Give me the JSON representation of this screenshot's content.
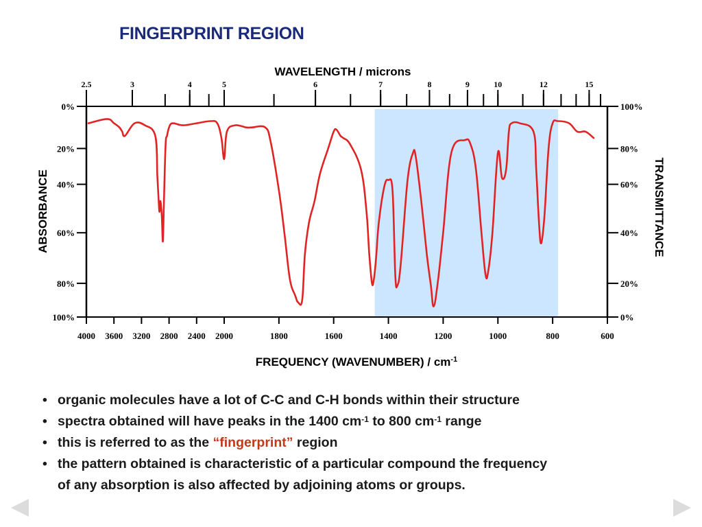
{
  "title": "FINGERPRINT REGION",
  "chart_data": {
    "type": "line",
    "title": "FINGERPRINT REGION",
    "xlabel": "FREQUENCY (WAVENUMBER) / cm",
    "xlabel_sup": "-1",
    "top_axis_label": "WAVELENGTH / microns",
    "ylabel_left": "ABSORBANCE",
    "ylabel_right": "TRANSMITTANCE",
    "xlim": [
      4000,
      600
    ],
    "ylim": [
      0,
      100
    ],
    "x_ticks": [
      4000,
      3600,
      3200,
      2800,
      2400,
      2000,
      1800,
      1600,
      1400,
      1200,
      1000,
      800,
      600
    ],
    "x_tick_labels": [
      "4000",
      "3600",
      "3200",
      "2800",
      "2400",
      "2000",
      "1800",
      "1600",
      "1400",
      "1200",
      "1000",
      "800",
      "600"
    ],
    "top_ticks_microns": [
      2.5,
      3,
      4,
      5,
      6,
      7,
      8,
      9,
      10,
      12,
      15
    ],
    "top_tick_labels": [
      "2.5",
      "3",
      "4",
      "5",
      "6",
      "7",
      "8",
      "9",
      "10",
      "12",
      "15"
    ],
    "left_ticks_absorbance": [
      "0%",
      "20%",
      "40%",
      "60%",
      "80%",
      "100%"
    ],
    "right_ticks_transmittance": [
      "100%",
      "80%",
      "60%",
      "40%",
      "20%",
      "0%"
    ],
    "highlight_region": [
      1450,
      780
    ],
    "series": [
      {
        "x": [
          3970,
          3700,
          3600,
          3520,
          3480,
          3440,
          3300,
          3150,
          3000,
          2970,
          2955,
          2940,
          2925,
          2905,
          2890,
          2872,
          2850,
          2830,
          2800,
          2750,
          2600,
          2400,
          2200,
          2100,
          2040,
          2000,
          1990,
          1960,
          1920,
          1900,
          1850,
          1830,
          1800,
          1780,
          1760,
          1740,
          1730,
          1715,
          1705,
          1690,
          1670,
          1650,
          1620,
          1600,
          1590,
          1575,
          1565,
          1540,
          1500,
          1480,
          1470,
          1460,
          1453,
          1445,
          1435,
          1415,
          1400,
          1385,
          1375,
          1367,
          1355,
          1330,
          1310,
          1300,
          1280,
          1260,
          1245,
          1235,
          1220,
          1200,
          1170,
          1120,
          1100,
          1080,
          1060,
          1045,
          1035,
          1020,
          1000,
          985,
          970,
          960,
          950,
          920,
          870,
          860,
          850,
          842,
          830,
          815,
          800,
          780,
          740,
          710,
          680,
          650
        ],
        "y": [
          8,
          6,
          8,
          10,
          12,
          14,
          8,
          9,
          14,
          33,
          42,
          50,
          45,
          52,
          64,
          42,
          18,
          14,
          10,
          8,
          9,
          8,
          7,
          8,
          15,
          25,
          12,
          9,
          10,
          10,
          10,
          17,
          40,
          60,
          82,
          90,
          93,
          92,
          70,
          55,
          45,
          32,
          20,
          12,
          11,
          14,
          15,
          18,
          30,
          50,
          70,
          84,
          82,
          72,
          55,
          38,
          35,
          40,
          80,
          85,
          75,
          35,
          22,
          24,
          45,
          70,
          85,
          95,
          84,
          60,
          22,
          16,
          18,
          30,
          60,
          80,
          78,
          60,
          22,
          34,
          30,
          12,
          8,
          8,
          12,
          30,
          55,
          65,
          52,
          20,
          8,
          7,
          8,
          12,
          12,
          15
        ]
      }
    ]
  },
  "bullets": [
    {
      "text": "organic molecules have a lot of C-C and C-H bonds within their structure"
    },
    {
      "pre": "spectra obtained will have peaks in the 1400 cm",
      "sup1": "-1",
      "mid": " to 800 cm",
      "sup2": "-1",
      "post": " range"
    },
    {
      "pre": "this is referred to as the ",
      "highlight": "“fingerprint”",
      "post": " region"
    },
    {
      "line1": "the pattern obtained is characteristic of a particular compound the frequency",
      "line2": "of any absorption is also affected by adjoining atoms or groups."
    }
  ],
  "bullet_symbol": "•",
  "colors": {
    "title": "#1b2a78",
    "curve": "#e02424",
    "highlight": "#cce6ff",
    "accent_text": "#c0391b",
    "nav_arrows": "#dcdcdc"
  },
  "nav": {
    "prev_icon": "triangle-left-icon",
    "next_icon": "triangle-right-icon"
  }
}
